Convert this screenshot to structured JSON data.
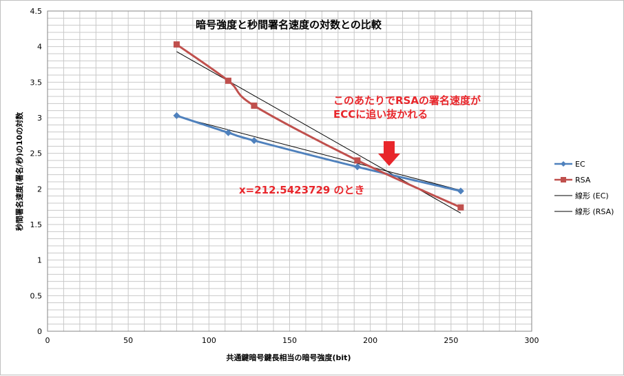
{
  "chart_data": {
    "type": "line",
    "title": "暗号強度と秒間署名速度の対数との比較",
    "xlabel": "共通鍵暗号鍵長相当の暗号強度(bit)",
    "ylabel": "秒間署名速度(署名/秒)の10の対数",
    "xlim": [
      0,
      300
    ],
    "ylim": [
      0,
      4.5
    ],
    "x_ticks": [
      "0",
      "50",
      "100",
      "150",
      "200",
      "250",
      "300"
    ],
    "y_ticks": [
      "0",
      "0.5",
      "1",
      "1.5",
      "2",
      "2.5",
      "3",
      "3.5",
      "4",
      "4.5"
    ],
    "grid": true,
    "legend_position": "right",
    "series": [
      {
        "name": "EC",
        "color": "#4f81bd",
        "marker": "diamond",
        "points": [
          [
            80,
            3.03
          ],
          [
            112,
            2.79
          ],
          [
            128,
            2.68
          ],
          [
            192,
            2.31
          ],
          [
            256,
            1.97
          ]
        ]
      },
      {
        "name": "RSA",
        "color": "#c0504d",
        "marker": "square",
        "points": [
          [
            80,
            4.03
          ],
          [
            112,
            3.52
          ],
          [
            128,
            3.17
          ],
          [
            192,
            2.4
          ],
          [
            256,
            1.74
          ]
        ]
      }
    ],
    "trendlines": [
      {
        "name": "線形 (EC)",
        "color": "#000000",
        "points": [
          [
            80,
            3.02
          ],
          [
            256,
            1.98
          ]
        ]
      },
      {
        "name": "線形 (RSA)",
        "color": "#000000",
        "points": [
          [
            80,
            3.93
          ],
          [
            256,
            1.66
          ]
        ]
      }
    ],
    "annotations": {
      "line1": "このあたりでRSAの署名速度が",
      "line2": "ECCに追い抜かれる",
      "crossing": "x=212.5423729 のとき",
      "arrow_color": "#e8262b"
    }
  }
}
